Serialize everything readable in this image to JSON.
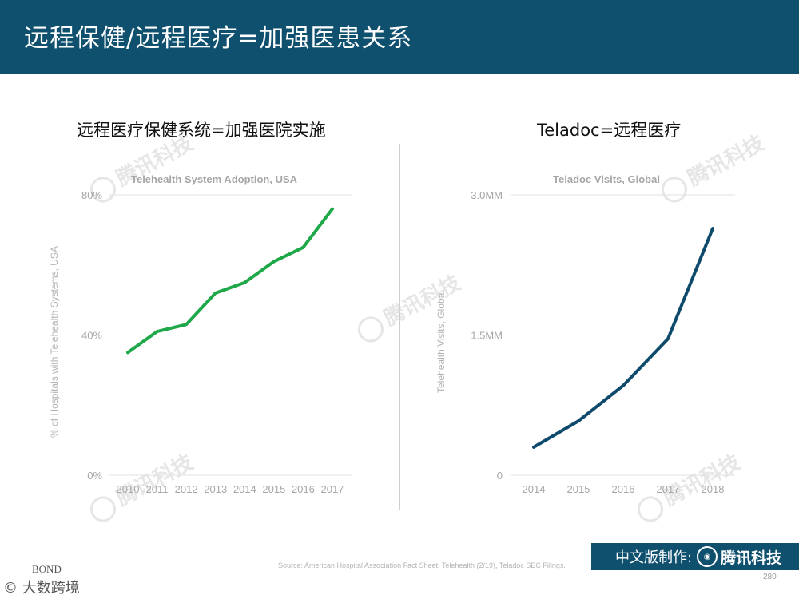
{
  "header": {
    "title": "远程保健/远程医疗=加强医患关系"
  },
  "left_section": {
    "title": "远程医疗保健系统=加强医院实施"
  },
  "right_section": {
    "title": "Teladoc=远程医疗"
  },
  "watermark": {
    "text": "腾讯科技"
  },
  "footer": {
    "source": "Source: American Hospital Association Fact Sheet: Telehealth (2/19), Teladoc SEC Filings.",
    "badge_label": "中文版制作:",
    "badge_brand": "腾讯科技",
    "page_number": "280",
    "bond_text": "BOND",
    "corner_text": "© 大数跨境"
  },
  "colors": {
    "header": "#10506f",
    "left_line": "#1fa84a",
    "right_line": "#0e4a6b"
  },
  "chart_data": [
    {
      "type": "line",
      "title": "Telehealth System Adoption, USA",
      "xlabel": "",
      "ylabel": "% of Hospitals with Telehealth Systems, USA",
      "categories": [
        "2010",
        "2011",
        "2012",
        "2013",
        "2014",
        "2015",
        "2016",
        "2017"
      ],
      "values": [
        35,
        41,
        43,
        52,
        55,
        61,
        65,
        76
      ],
      "ylim": [
        0,
        80
      ],
      "yticks": [
        0,
        40,
        80
      ],
      "ytick_labels": [
        "0%",
        "40%",
        "80%"
      ],
      "grid": true
    },
    {
      "type": "line",
      "title": "Teladoc Visits, Global",
      "xlabel": "",
      "ylabel": "Telehealth Visits, Global",
      "categories": [
        "2014",
        "2015",
        "2016",
        "2017",
        "2018"
      ],
      "values": [
        0.3,
        0.58,
        0.96,
        1.46,
        2.64
      ],
      "ylim": [
        0,
        3
      ],
      "yticks": [
        0,
        1.5,
        3
      ],
      "ytick_labels": [
        "0",
        "1.5MM",
        "3.0MM"
      ],
      "grid": true
    }
  ]
}
